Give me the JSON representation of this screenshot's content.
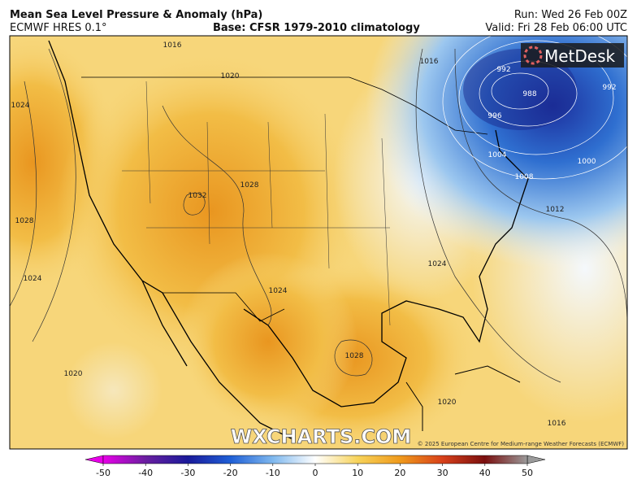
{
  "header": {
    "title": "Mean Sea Level Pressure & Anomaly (hPa)",
    "model": "ECMWF HRES 0.1°",
    "base": "Base: CFSR 1979-2010 climatology",
    "run": "Run: Wed 26 Feb 00Z",
    "valid": "Valid: Fri 28 Feb 06:00 UTC"
  },
  "map": {
    "logo": "MetDesk",
    "watermark": "WXCHARTS.COM",
    "credit": "© 2025 European Centre for Medium-range Weather Forecasts (ECMWF)",
    "contour_labels": [
      "1016",
      "1020",
      "1024",
      "1028",
      "1032",
      "1028",
      "1024",
      "1024",
      "1028",
      "1024",
      "1020",
      "1020",
      "1016",
      "992",
      "988",
      "992",
      "996",
      "1000",
      "1004",
      "1008",
      "1012",
      "1016"
    ]
  },
  "colorbar": {
    "range": [
      -50,
      50
    ],
    "ticks": [
      -50,
      -40,
      -30,
      -20,
      -10,
      0,
      10,
      20,
      30,
      40,
      50
    ],
    "colors": [
      "#e800e8",
      "#6a1fa0",
      "#1a1a9a",
      "#1f5fd6",
      "#7fb8ee",
      "#ffffff",
      "#f7d35a",
      "#ef9a1c",
      "#d8401a",
      "#7a0f0f",
      "#9a9a9a"
    ]
  }
}
